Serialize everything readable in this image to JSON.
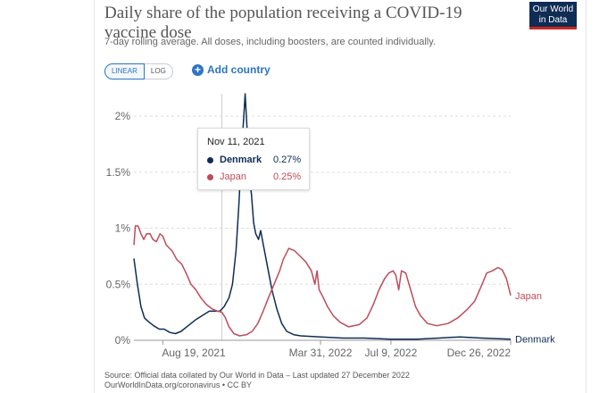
{
  "title": "Daily share of the population receiving a COVID-19 vaccine dose",
  "subtitle": "7-day rolling average. All doses, including boosters, are counted individually.",
  "logo": {
    "line1": "Our World",
    "line2": "in Data"
  },
  "controls": {
    "linear_label": "LINEAR",
    "log_label": "LOG",
    "add_country_label": "Add country"
  },
  "colors": {
    "denmark": "#0f2c55",
    "japan": "#bf4b5b",
    "axis": "#666666",
    "grid": "#dddddd"
  },
  "tooltip": {
    "date": "Nov 11, 2021",
    "rows": [
      {
        "name": "Denmark",
        "value": "0.27%"
      },
      {
        "name": "Japan",
        "value": "0.25%"
      }
    ]
  },
  "source": {
    "line1": "Source: Official data collated by Our World in Data – Last updated 27 December 2022",
    "line2": "OurWorldInData.org/coronavirus • CC BY"
  },
  "chart_data": {
    "type": "line",
    "title": "Daily share of the population receiving a COVID-19 vaccine dose",
    "y_ticks": [
      {
        "value": 0,
        "label": "0%"
      },
      {
        "value": 0.5,
        "label": "0.5%"
      },
      {
        "value": 1,
        "label": "1%"
      },
      {
        "value": 1.5,
        "label": "1.5%"
      },
      {
        "value": 2,
        "label": "2%"
      }
    ],
    "x_ticks": [
      {
        "date": "2021-08-19",
        "label": "Aug 19, 2021"
      },
      {
        "date": "2022-03-31",
        "label": "Mar 31, 2022"
      },
      {
        "date": "2022-07-09",
        "label": "Jul 9, 2022"
      },
      {
        "date": "2022-12-26",
        "label": "Dec 26, 2022"
      }
    ],
    "xlim": [
      "2021-07-09",
      "2022-12-26"
    ],
    "ylim": [
      0,
      2.2
    ],
    "grid": true,
    "hover_date": "2021-11-11",
    "series": [
      {
        "name": "Denmark",
        "end_label": "Denmark",
        "points": [
          [
            "2021-07-09",
            0.73
          ],
          [
            "2021-07-14",
            0.5
          ],
          [
            "2021-07-19",
            0.3
          ],
          [
            "2021-07-24",
            0.2
          ],
          [
            "2021-07-29",
            0.17
          ],
          [
            "2021-08-06",
            0.13
          ],
          [
            "2021-08-14",
            0.1
          ],
          [
            "2021-08-21",
            0.1
          ],
          [
            "2021-08-29",
            0.07
          ],
          [
            "2021-09-06",
            0.06
          ],
          [
            "2021-09-14",
            0.08
          ],
          [
            "2021-09-24",
            0.13
          ],
          [
            "2021-10-04",
            0.18
          ],
          [
            "2021-10-14",
            0.22
          ],
          [
            "2021-10-24",
            0.26
          ],
          [
            "2021-11-01",
            0.26
          ],
          [
            "2021-11-08",
            0.26
          ],
          [
            "2021-11-14",
            0.3
          ],
          [
            "2021-11-21",
            0.38
          ],
          [
            "2021-11-26",
            0.5
          ],
          [
            "2021-12-01",
            0.8
          ],
          [
            "2021-12-05",
            1.2
          ],
          [
            "2021-12-09",
            1.7
          ],
          [
            "2021-12-12",
            2.0
          ],
          [
            "2021-12-14",
            2.2
          ],
          [
            "2021-12-17",
            1.85
          ],
          [
            "2021-12-20",
            1.45
          ],
          [
            "2021-12-23",
            1.3
          ],
          [
            "2021-12-26",
            1.05
          ],
          [
            "2021-12-29",
            0.95
          ],
          [
            "2022-01-02",
            0.9
          ],
          [
            "2022-01-05",
            0.98
          ],
          [
            "2022-01-08",
            0.88
          ],
          [
            "2022-01-14",
            0.68
          ],
          [
            "2022-01-21",
            0.45
          ],
          [
            "2022-01-28",
            0.28
          ],
          [
            "2022-02-04",
            0.15
          ],
          [
            "2022-02-11",
            0.08
          ],
          [
            "2022-02-21",
            0.05
          ],
          [
            "2022-03-03",
            0.04
          ],
          [
            "2022-03-31",
            0.03
          ],
          [
            "2022-05-01",
            0.02
          ],
          [
            "2022-06-01",
            0.02
          ],
          [
            "2022-07-09",
            0.01
          ],
          [
            "2022-08-15",
            0.01
          ],
          [
            "2022-09-15",
            0.02
          ],
          [
            "2022-10-15",
            0.03
          ],
          [
            "2022-11-15",
            0.02
          ],
          [
            "2022-12-26",
            0.01
          ]
        ]
      },
      {
        "name": "Japan",
        "end_label": "Japan",
        "points": [
          [
            "2021-07-09",
            0.85
          ],
          [
            "2021-07-11",
            1.02
          ],
          [
            "2021-07-15",
            1.02
          ],
          [
            "2021-07-19",
            0.95
          ],
          [
            "2021-07-23",
            0.9
          ],
          [
            "2021-07-27",
            0.95
          ],
          [
            "2021-08-01",
            0.95
          ],
          [
            "2021-08-05",
            0.9
          ],
          [
            "2021-08-10",
            0.88
          ],
          [
            "2021-08-15",
            0.95
          ],
          [
            "2021-08-19",
            0.93
          ],
          [
            "2021-08-24",
            0.85
          ],
          [
            "2021-09-01",
            0.8
          ],
          [
            "2021-09-08",
            0.72
          ],
          [
            "2021-09-15",
            0.68
          ],
          [
            "2021-09-21",
            0.6
          ],
          [
            "2021-09-28",
            0.5
          ],
          [
            "2021-10-05",
            0.45
          ],
          [
            "2021-10-12",
            0.38
          ],
          [
            "2021-10-20",
            0.32
          ],
          [
            "2021-10-28",
            0.28
          ],
          [
            "2021-11-05",
            0.26
          ],
          [
            "2021-11-11",
            0.25
          ],
          [
            "2021-11-16",
            0.2
          ],
          [
            "2021-11-21",
            0.12
          ],
          [
            "2021-11-28",
            0.06
          ],
          [
            "2021-12-06",
            0.04
          ],
          [
            "2021-12-16",
            0.05
          ],
          [
            "2021-12-24",
            0.08
          ],
          [
            "2022-01-01",
            0.15
          ],
          [
            "2022-01-08",
            0.25
          ],
          [
            "2022-01-16",
            0.38
          ],
          [
            "2022-01-24",
            0.5
          ],
          [
            "2022-02-01",
            0.62
          ],
          [
            "2022-02-06",
            0.72
          ],
          [
            "2022-02-14",
            0.82
          ],
          [
            "2022-02-22",
            0.8
          ],
          [
            "2022-03-02",
            0.75
          ],
          [
            "2022-03-10",
            0.7
          ],
          [
            "2022-03-18",
            0.62
          ],
          [
            "2022-03-23",
            0.5
          ],
          [
            "2022-03-26",
            0.62
          ],
          [
            "2022-03-29",
            0.45
          ],
          [
            "2022-04-04",
            0.38
          ],
          [
            "2022-04-10",
            0.3
          ],
          [
            "2022-04-18",
            0.22
          ],
          [
            "2022-04-28",
            0.16
          ],
          [
            "2022-05-10",
            0.12
          ],
          [
            "2022-05-25",
            0.14
          ],
          [
            "2022-06-05",
            0.2
          ],
          [
            "2022-06-14",
            0.32
          ],
          [
            "2022-06-22",
            0.45
          ],
          [
            "2022-06-30",
            0.55
          ],
          [
            "2022-07-06",
            0.6
          ],
          [
            "2022-07-12",
            0.62
          ],
          [
            "2022-07-16",
            0.58
          ],
          [
            "2022-07-20",
            0.45
          ],
          [
            "2022-07-24",
            0.62
          ],
          [
            "2022-07-30",
            0.6
          ],
          [
            "2022-08-06",
            0.45
          ],
          [
            "2022-08-13",
            0.3
          ],
          [
            "2022-08-20",
            0.22
          ],
          [
            "2022-08-30",
            0.15
          ],
          [
            "2022-09-12",
            0.13
          ],
          [
            "2022-09-28",
            0.15
          ],
          [
            "2022-10-12",
            0.2
          ],
          [
            "2022-10-26",
            0.28
          ],
          [
            "2022-11-05",
            0.35
          ],
          [
            "2022-11-14",
            0.48
          ],
          [
            "2022-11-22",
            0.6
          ],
          [
            "2022-11-30",
            0.62
          ],
          [
            "2022-12-08",
            0.65
          ],
          [
            "2022-12-14",
            0.63
          ],
          [
            "2022-12-20",
            0.55
          ],
          [
            "2022-12-26",
            0.4
          ]
        ]
      }
    ]
  }
}
